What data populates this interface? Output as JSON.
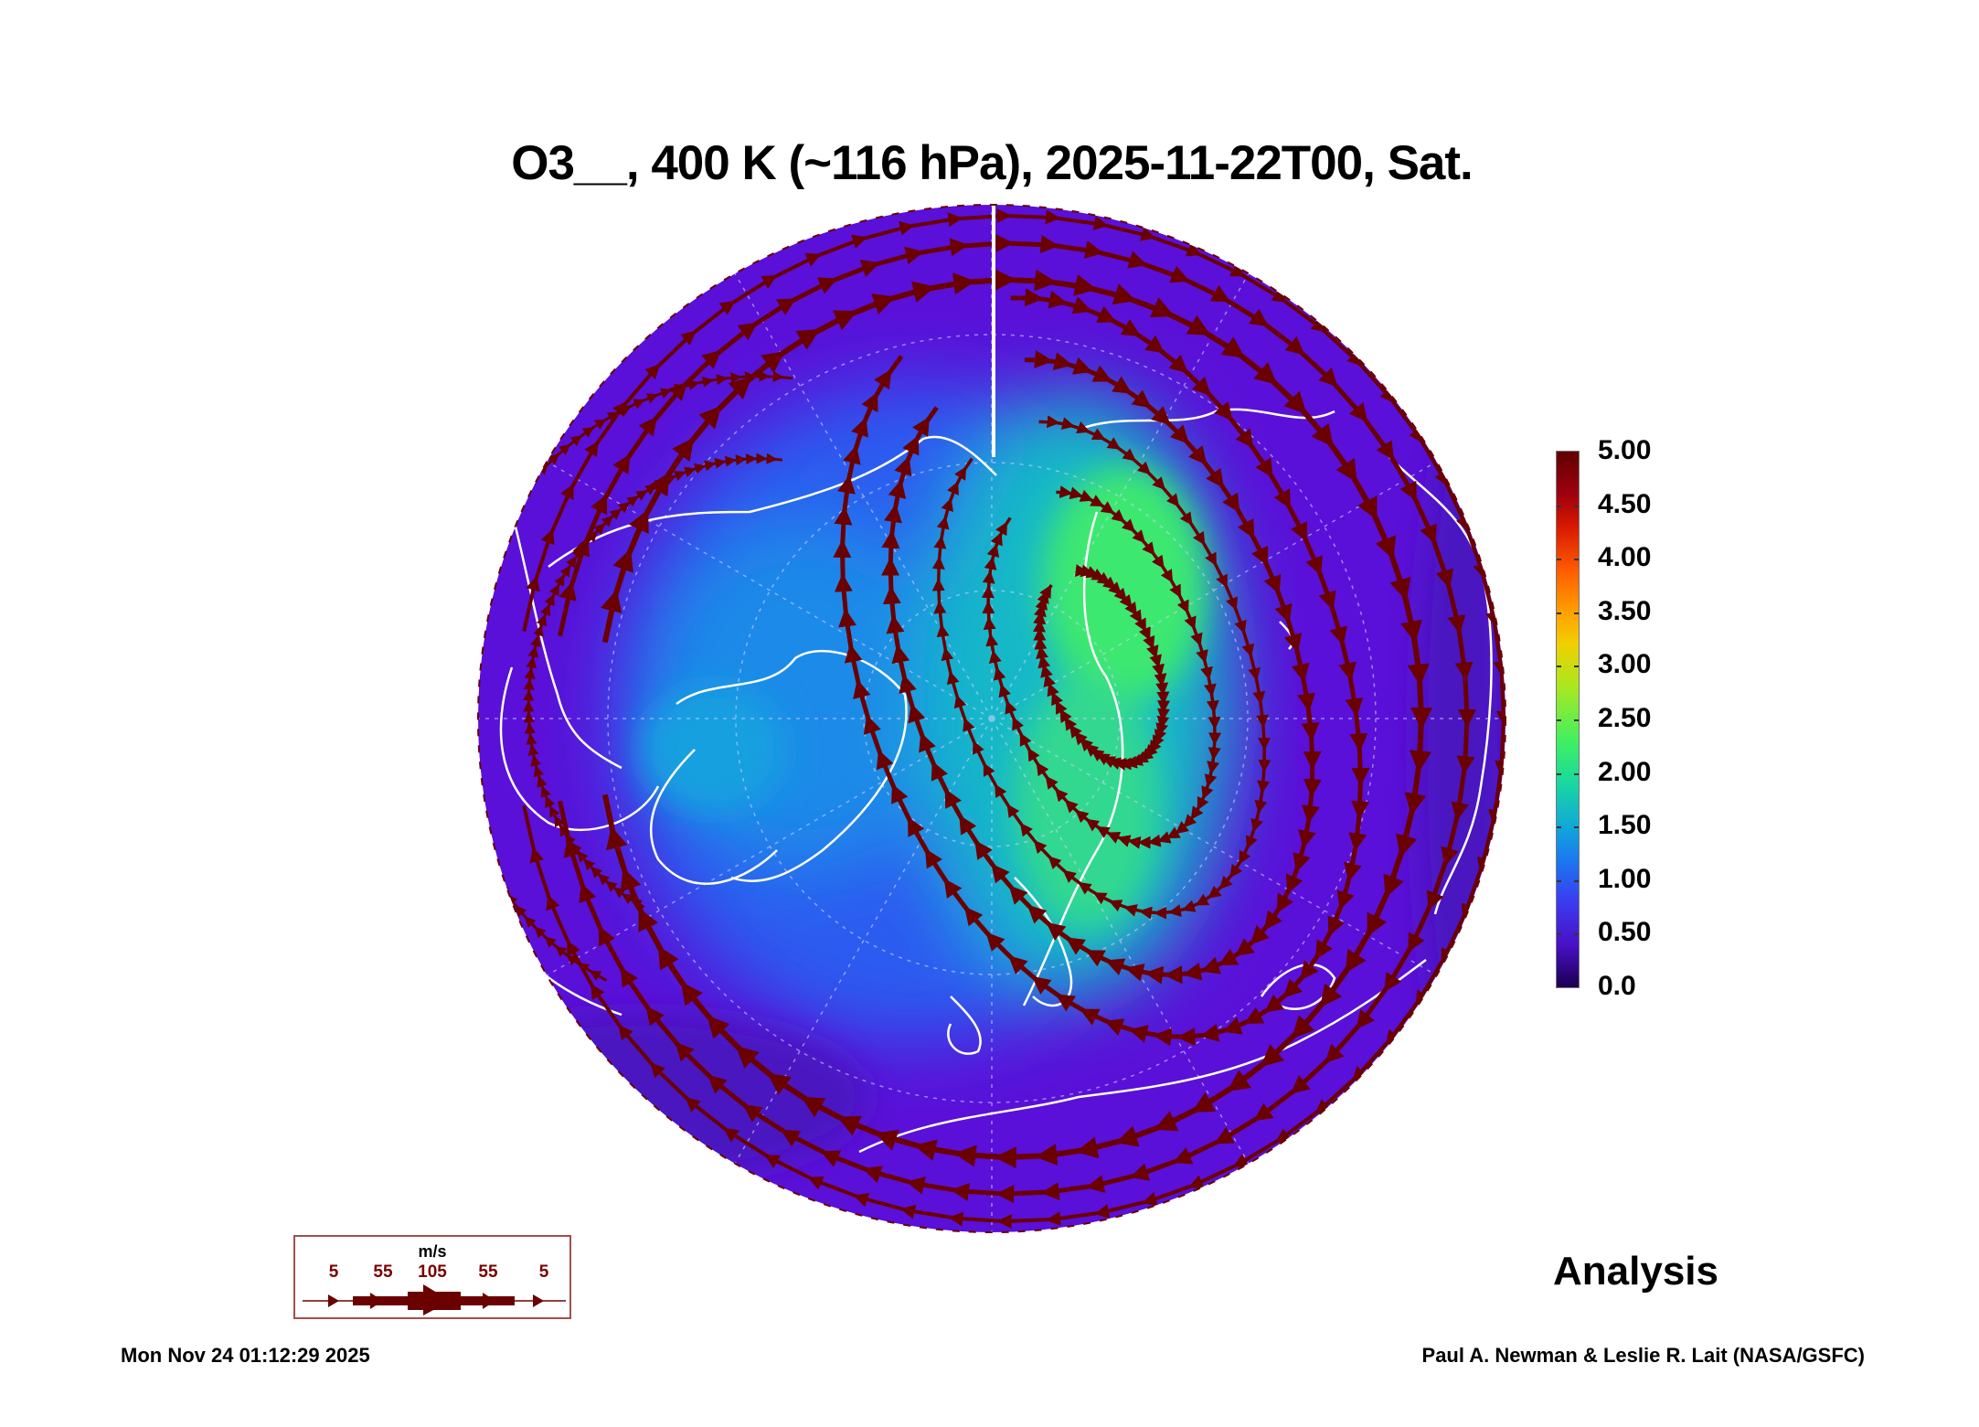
{
  "title": "O3__, 400 K (~116 hPa), 2025-11-22T00, Sat.",
  "colorbar": {
    "min": 0.0,
    "max": 5.0,
    "labels": [
      "5.00",
      "4.50",
      "4.00",
      "3.50",
      "3.00",
      "2.50",
      "2.00",
      "1.50",
      "1.00",
      "0.50",
      "0.0"
    ],
    "colors": [
      "#1a0050",
      "#4a10c8",
      "#1a7af0",
      "#10a8d8",
      "#40f060",
      "#f0d000",
      "#ff5a00",
      "#600000"
    ]
  },
  "label_analysis": "Analysis",
  "wind_legend": {
    "unit": "m/s",
    "values": [
      "5",
      "55",
      "105",
      "55",
      "5"
    ],
    "color": "#6a0000"
  },
  "footer": {
    "timestamp": "Mon Nov 24 01:12:29 2025",
    "credit": "Paul A. Newman & Leslie R. Lait (NASA/GSFC)"
  },
  "colors": {
    "streamline": "#6a0000",
    "coastline": "#ffffff",
    "background": "#5a10d8"
  }
}
